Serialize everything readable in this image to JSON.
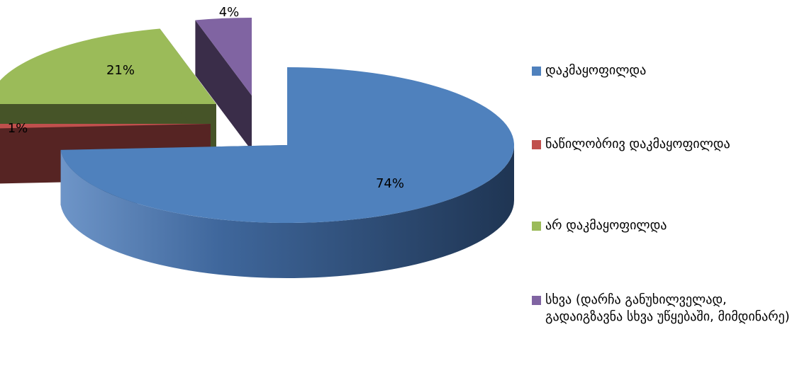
{
  "chart_data": {
    "type": "pie",
    "style": "3d-exploded",
    "legend_position": "right",
    "series": [
      {
        "label": "დაკმაყოფილდა",
        "value": 74,
        "data_label": "74%",
        "color": "#4F81BD"
      },
      {
        "label": "ნაწილობრივ დაკმაყოფილდა",
        "value": 1,
        "data_label": "1%",
        "color": "#C0504D"
      },
      {
        "label": "არ დაკმაყოფილდა",
        "value": 21,
        "data_label": "21%",
        "color": "#9BBB59"
      },
      {
        "label": "სხვა (დარჩა განუხილველად, გადაიგზავნა სხვა უწყებაში, მიმდინარე)",
        "value": 4,
        "data_label": "4%",
        "color": "#8064A2"
      }
    ]
  }
}
